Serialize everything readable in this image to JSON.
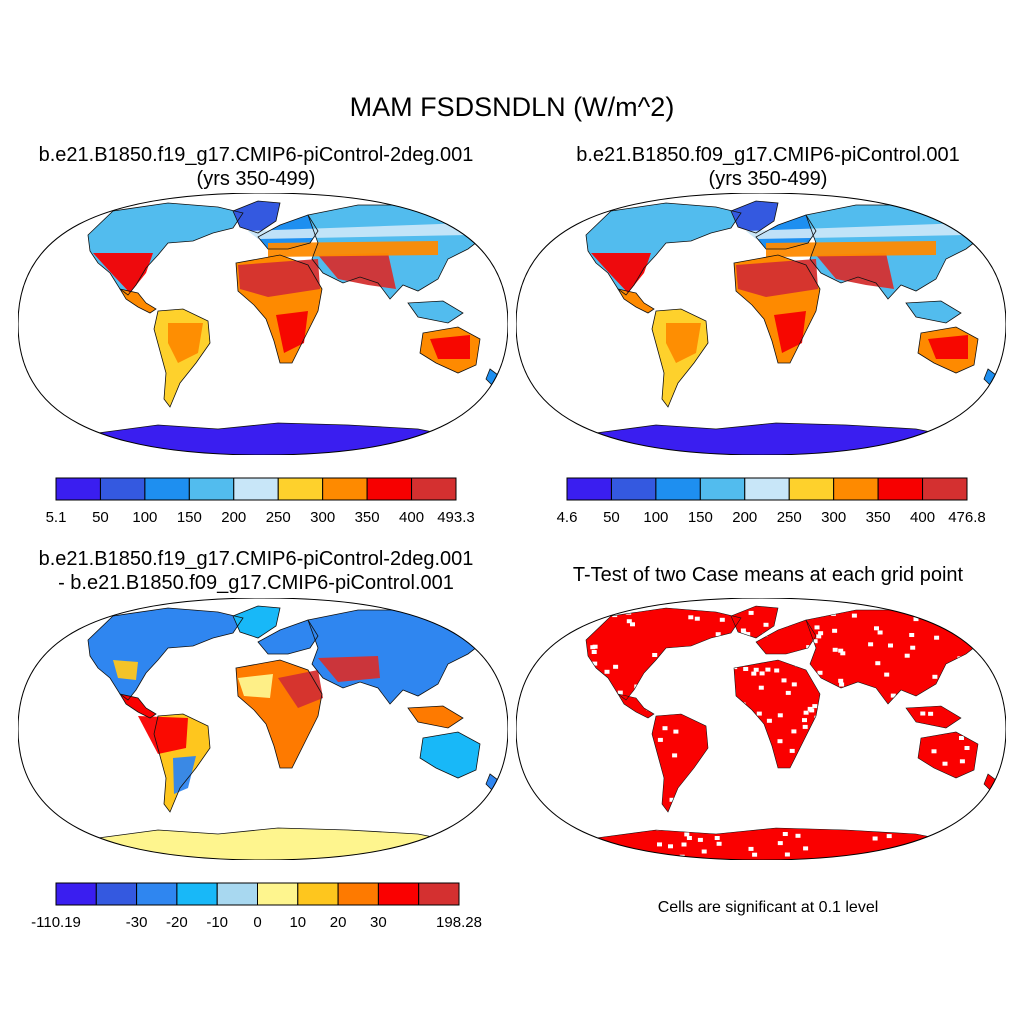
{
  "title": "MAM FSDSNDLN (W/m^2)",
  "colors": {
    "abs": [
      "#3a1ef0",
      "#3459e0",
      "#1e8ff0",
      "#52bcee",
      "#c8e6f8",
      "#fed12c",
      "#fe8a00",
      "#f70000",
      "#d43030"
    ],
    "diff": [
      "#3a1ef0",
      "#3459e0",
      "#2f86f0",
      "#18b8f8",
      "#a8d8f0",
      "#fef58e",
      "#fec61e",
      "#fe7a00",
      "#fa0000",
      "#d43030"
    ],
    "ttest": "#fa0000",
    "land_default": "#c8e6f8"
  },
  "panels": [
    {
      "id": "p1",
      "title_lines": [
        "b.e21.B1850.f19_g17.CMIP6-piControl-2deg.001",
        "(yrs 350-499)"
      ],
      "colorbar": [
        "5.1",
        "50",
        "100",
        "150",
        "200",
        "250",
        "300",
        "350",
        "400",
        "493.3"
      ]
    },
    {
      "id": "p2",
      "title_lines": [
        "b.e21.B1850.f09_g17.CMIP6-piControl.001",
        "(yrs 350-499)"
      ],
      "colorbar": [
        "4.6",
        "50",
        "100",
        "150",
        "200",
        "250",
        "300",
        "350",
        "400",
        "476.8"
      ]
    },
    {
      "id": "p3",
      "title_lines": [
        "b.e21.B1850.f19_g17.CMIP6-piControl-2deg.001",
        "- b.e21.B1850.f09_g17.CMIP6-piControl.001"
      ],
      "colorbar": [
        "-110.19",
        "-30",
        "-20",
        "-10",
        "0",
        "10",
        "20",
        "30",
        "198.28"
      ]
    },
    {
      "id": "p4",
      "title_lines": [
        "T-Test of two Case means at each grid point"
      ],
      "note": "Cells are significant at 0.1 level"
    }
  ]
}
